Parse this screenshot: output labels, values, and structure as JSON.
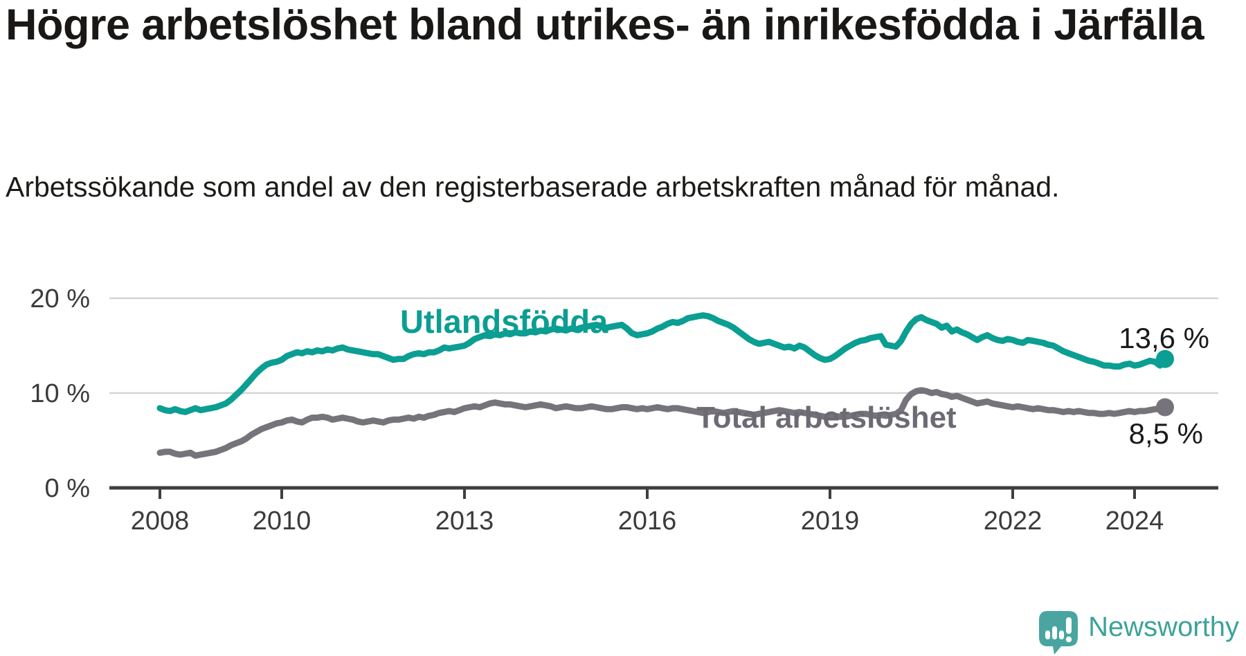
{
  "header": {
    "title": "Högre arbetslöshet bland utrikes- än inrikesfödda i Järfälla",
    "subtitle": "Arbetssökande som andel av den registerbaserade arbetskraften månad för månad."
  },
  "chart_data": {
    "type": "line",
    "title": "Högre arbetslöshet bland utrikes- än inrikesfödda i Järfälla",
    "unit": "%",
    "frequency": "monthly",
    "x_start": "2008-01",
    "x_end": "2024-07",
    "ylim": [
      0,
      22
    ],
    "grid": "horizontal",
    "gridline_color": "#d4d4d4",
    "axis_color": "#3f3f3f",
    "tick_label_color": "#3b3b3b",
    "y_ticks_display": [
      "20 %",
      "10 %",
      "0 %"
    ],
    "x_ticks": [
      "2008",
      "2010",
      "2013",
      "2016",
      "2019",
      "2022",
      "2024"
    ],
    "series": [
      {
        "name": "Utlandsfödda",
        "color": "#0b9e92",
        "end_label": "13,6 %",
        "end_value": 13.6,
        "values": [
          8.4,
          8.2,
          8.1,
          8.3,
          8.1,
          8.0,
          8.2,
          8.4,
          8.2,
          8.3,
          8.4,
          8.5,
          8.7,
          8.9,
          9.3,
          9.8,
          10.3,
          10.9,
          11.5,
          12.1,
          12.6,
          13.0,
          13.2,
          13.3,
          13.5,
          13.9,
          14.1,
          14.3,
          14.2,
          14.4,
          14.3,
          14.5,
          14.4,
          14.6,
          14.5,
          14.7,
          14.8,
          14.6,
          14.5,
          14.4,
          14.3,
          14.2,
          14.1,
          14.1,
          13.9,
          13.7,
          13.5,
          13.6,
          13.6,
          13.9,
          14.1,
          14.2,
          14.1,
          14.3,
          14.3,
          14.5,
          14.8,
          14.7,
          14.8,
          14.9,
          15.0,
          15.3,
          15.7,
          15.9,
          16.1,
          16.0,
          16.2,
          16.1,
          16.3,
          16.2,
          16.4,
          16.3,
          16.3,
          16.5,
          16.4,
          16.6,
          16.5,
          16.7,
          16.8,
          16.7,
          16.6,
          16.8,
          16.7,
          16.9,
          17.0,
          17.1,
          17.2,
          17.0,
          16.9,
          17.0,
          17.1,
          17.2,
          16.8,
          16.3,
          16.1,
          16.2,
          16.3,
          16.5,
          16.8,
          17.0,
          17.3,
          17.5,
          17.4,
          17.6,
          17.9,
          18.0,
          18.1,
          18.2,
          18.1,
          17.9,
          17.6,
          17.4,
          17.2,
          16.9,
          16.5,
          16.1,
          15.7,
          15.4,
          15.2,
          15.3,
          15.4,
          15.2,
          15.0,
          14.8,
          14.9,
          14.7,
          15.0,
          14.8,
          14.4,
          14.0,
          13.7,
          13.5,
          13.6,
          13.9,
          14.3,
          14.7,
          15.0,
          15.3,
          15.5,
          15.6,
          15.8,
          15.9,
          16.0,
          15.1,
          15.0,
          14.9,
          15.5,
          16.5,
          17.3,
          17.8,
          18.0,
          17.7,
          17.5,
          17.3,
          16.9,
          17.1,
          16.5,
          16.7,
          16.4,
          16.2,
          15.9,
          15.6,
          15.9,
          16.1,
          15.8,
          15.6,
          15.5,
          15.7,
          15.6,
          15.4,
          15.3,
          15.6,
          15.5,
          15.4,
          15.3,
          15.1,
          15.0,
          14.7,
          14.4,
          14.2,
          14.0,
          13.8,
          13.6,
          13.4,
          13.3,
          13.1,
          12.9,
          12.9,
          12.8,
          12.8,
          13.0,
          13.1,
          12.9,
          13.0,
          13.2,
          13.4,
          13.3,
          12.9,
          13.6
        ]
      },
      {
        "name": "Total arbetslöshet",
        "color": "#76737b",
        "label_color": "#6d6a74",
        "end_label": "8,5 %",
        "end_value": 8.5,
        "values": [
          3.7,
          3.8,
          3.8,
          3.6,
          3.5,
          3.6,
          3.7,
          3.4,
          3.5,
          3.6,
          3.7,
          3.8,
          4.0,
          4.2,
          4.5,
          4.7,
          4.9,
          5.2,
          5.6,
          5.9,
          6.2,
          6.4,
          6.6,
          6.8,
          6.9,
          7.1,
          7.2,
          7.0,
          6.9,
          7.2,
          7.4,
          7.4,
          7.5,
          7.4,
          7.2,
          7.3,
          7.4,
          7.3,
          7.2,
          7.0,
          6.9,
          7.0,
          7.1,
          7.0,
          6.9,
          7.1,
          7.2,
          7.2,
          7.3,
          7.4,
          7.3,
          7.5,
          7.4,
          7.6,
          7.7,
          7.9,
          8.0,
          8.1,
          8.0,
          8.2,
          8.4,
          8.5,
          8.6,
          8.5,
          8.7,
          8.9,
          9.0,
          8.9,
          8.8,
          8.8,
          8.7,
          8.6,
          8.5,
          8.6,
          8.7,
          8.8,
          8.7,
          8.6,
          8.4,
          8.5,
          8.6,
          8.5,
          8.4,
          8.4,
          8.5,
          8.6,
          8.5,
          8.4,
          8.3,
          8.3,
          8.4,
          8.5,
          8.5,
          8.4,
          8.3,
          8.4,
          8.3,
          8.4,
          8.5,
          8.4,
          8.3,
          8.4,
          8.4,
          8.3,
          8.2,
          8.1,
          8.0,
          7.9,
          8.0,
          8.1,
          8.0,
          7.9,
          8.0,
          8.1,
          8.0,
          7.9,
          7.8,
          7.7,
          7.8,
          7.9,
          8.0,
          8.1,
          8.2,
          8.1,
          8.0,
          7.9,
          8.0,
          7.9,
          7.8,
          7.7,
          7.6,
          7.5,
          7.5,
          7.6,
          7.5,
          7.5,
          7.6,
          7.7,
          7.8,
          7.8,
          7.7,
          7.6,
          7.7,
          7.6,
          7.7,
          7.8,
          8.2,
          9.3,
          9.9,
          10.2,
          10.3,
          10.2,
          10.0,
          10.1,
          9.9,
          9.8,
          9.6,
          9.7,
          9.5,
          9.3,
          9.1,
          8.9,
          9.0,
          9.1,
          8.9,
          8.8,
          8.7,
          8.6,
          8.5,
          8.6,
          8.5,
          8.4,
          8.3,
          8.4,
          8.3,
          8.2,
          8.2,
          8.1,
          8.0,
          8.1,
          8.0,
          8.1,
          8.0,
          7.9,
          7.9,
          7.8,
          7.8,
          7.9,
          7.8,
          7.9,
          8.0,
          8.1,
          8.0,
          8.1,
          8.1,
          8.2,
          8.3,
          8.3,
          8.5
        ]
      }
    ],
    "legend_position": "inline"
  },
  "branding": {
    "name": "Newsworthy",
    "color": "#3da29a",
    "icon_color": "#4aa5a0",
    "icon": "newsworthy-speech-bubble-bar-chart-icon"
  }
}
